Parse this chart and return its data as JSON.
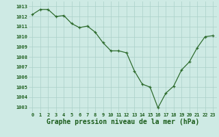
{
  "x": [
    0,
    1,
    2,
    3,
    4,
    5,
    6,
    7,
    8,
    9,
    10,
    11,
    12,
    13,
    14,
    15,
    16,
    17,
    18,
    19,
    20,
    21,
    22,
    23
  ],
  "y": [
    1012.2,
    1012.7,
    1012.7,
    1012.0,
    1012.1,
    1011.3,
    1010.9,
    1011.05,
    1010.45,
    1009.4,
    1008.6,
    1008.6,
    1008.4,
    1006.6,
    1005.3,
    1005.0,
    1002.95,
    1004.4,
    1005.1,
    1006.7,
    1007.5,
    1008.9,
    1010.0,
    1010.1
  ],
  "line_color": "#2d6b2d",
  "marker_color": "#2d6b2d",
  "bg_color": "#ceeae4",
  "grid_color": "#aacfc8",
  "xlabel": "Graphe pression niveau de la mer (hPa)",
  "xlabel_color": "#1a5c1a",
  "tick_color": "#1a5c1a",
  "ylim": [
    1002.5,
    1013.5
  ],
  "yticks": [
    1003,
    1004,
    1005,
    1006,
    1007,
    1008,
    1009,
    1010,
    1011,
    1012,
    1013
  ],
  "xticks": [
    0,
    1,
    2,
    3,
    4,
    5,
    6,
    7,
    8,
    9,
    10,
    11,
    12,
    13,
    14,
    15,
    16,
    17,
    18,
    19,
    20,
    21,
    22,
    23
  ],
  "tick_fontsize": 5.0,
  "xlabel_fontsize": 7.0,
  "line_width": 0.9,
  "marker_size": 3.0
}
